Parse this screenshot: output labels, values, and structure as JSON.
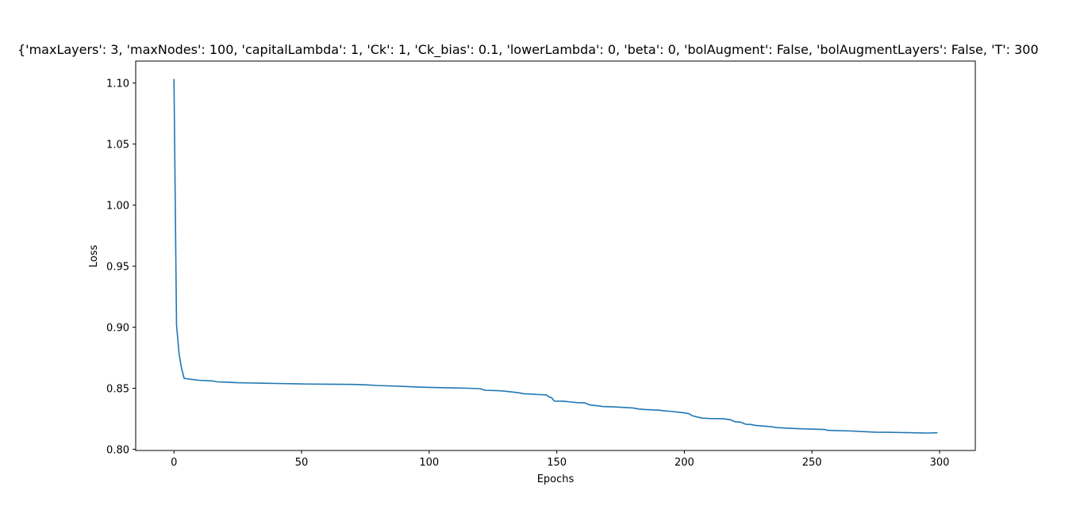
{
  "chart_data": {
    "type": "line",
    "title": "{'maxLayers': 3, 'maxNodes': 100, 'capitalLambda': 1, 'Ck': 1, 'Ck_bias': 0.1, 'lowerLambda': 0, 'beta': 0, 'bolAugment': False, 'bolAugmentLayers': False, 'T': 300",
    "xlabel": "Epochs",
    "ylabel": "Loss",
    "xlim": [
      -15,
      314
    ],
    "ylim": [
      0.799,
      1.118
    ],
    "xticks": [
      0,
      50,
      100,
      150,
      200,
      250,
      300
    ],
    "yticks": [
      0.8,
      0.85,
      0.9,
      0.95,
      1.0,
      1.05,
      1.1
    ],
    "ytick_labels": [
      "0.80",
      "0.85",
      "0.90",
      "0.95",
      "1.00",
      "1.05",
      "1.10"
    ],
    "grid": false,
    "series": [
      {
        "color": "#1f77b4",
        "points": [
          [
            0,
            1.103
          ],
          [
            1,
            0.902
          ],
          [
            2,
            0.878
          ],
          [
            3,
            0.866
          ],
          [
            4,
            0.858
          ],
          [
            5,
            0.8578
          ],
          [
            7,
            0.8572
          ],
          [
            10,
            0.8565
          ],
          [
            15,
            0.856
          ],
          [
            17,
            0.8552
          ],
          [
            20,
            0.855
          ],
          [
            25,
            0.8545
          ],
          [
            30,
            0.8543
          ],
          [
            35,
            0.8541
          ],
          [
            40,
            0.8539
          ],
          [
            50,
            0.8535
          ],
          [
            60,
            0.8533
          ],
          [
            70,
            0.8531
          ],
          [
            75,
            0.8528
          ],
          [
            80,
            0.8522
          ],
          [
            90,
            0.8515
          ],
          [
            95,
            0.851
          ],
          [
            100,
            0.8507
          ],
          [
            110,
            0.8502
          ],
          [
            115,
            0.85
          ],
          [
            120,
            0.8496
          ],
          [
            122,
            0.8483
          ],
          [
            127,
            0.848
          ],
          [
            130,
            0.8475
          ],
          [
            133,
            0.8468
          ],
          [
            135,
            0.8463
          ],
          [
            137,
            0.8455
          ],
          [
            140,
            0.8452
          ],
          [
            143,
            0.8448
          ],
          [
            146,
            0.8445
          ],
          [
            147,
            0.8428
          ],
          [
            148,
            0.8422
          ],
          [
            149,
            0.8395
          ],
          [
            153,
            0.8393
          ],
          [
            155,
            0.8388
          ],
          [
            158,
            0.8382
          ],
          [
            161,
            0.838
          ],
          [
            163,
            0.8363
          ],
          [
            166,
            0.8356
          ],
          [
            168,
            0.835
          ],
          [
            172,
            0.8348
          ],
          [
            176,
            0.8343
          ],
          [
            180,
            0.8338
          ],
          [
            182,
            0.833
          ],
          [
            185,
            0.8325
          ],
          [
            190,
            0.832
          ],
          [
            192,
            0.8315
          ],
          [
            195,
            0.831
          ],
          [
            198,
            0.8303
          ],
          [
            200,
            0.8298
          ],
          [
            202,
            0.829
          ],
          [
            203,
            0.8275
          ],
          [
            205,
            0.8265
          ],
          [
            207,
            0.8255
          ],
          [
            210,
            0.8252
          ],
          [
            215,
            0.825
          ],
          [
            218,
            0.8242
          ],
          [
            220,
            0.8225
          ],
          [
            222,
            0.8222
          ],
          [
            224,
            0.8205
          ],
          [
            226,
            0.8203
          ],
          [
            228,
            0.8195
          ],
          [
            231,
            0.819
          ],
          [
            234,
            0.8185
          ],
          [
            236,
            0.8178
          ],
          [
            240,
            0.8173
          ],
          [
            245,
            0.8168
          ],
          [
            250,
            0.8165
          ],
          [
            255,
            0.8162
          ],
          [
            256,
            0.8155
          ],
          [
            260,
            0.8153
          ],
          [
            265,
            0.815
          ],
          [
            270,
            0.8145
          ],
          [
            275,
            0.814
          ],
          [
            280,
            0.8139
          ],
          [
            285,
            0.8137
          ],
          [
            290,
            0.8135
          ],
          [
            295,
            0.8133
          ],
          [
            299,
            0.8135
          ]
        ]
      }
    ]
  }
}
